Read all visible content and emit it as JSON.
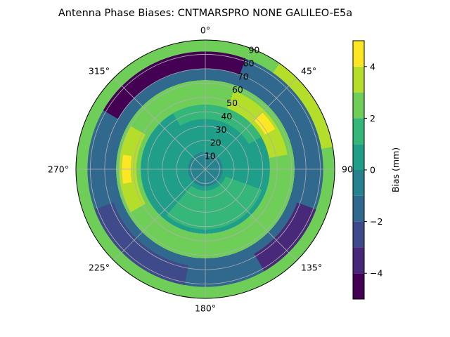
{
  "chart_data": {
    "type": "polar-contour",
    "title": "Antenna Phase Biases: CNTMARSPRO      NONE GALILEO-E5a",
    "theta_zero_location": "N",
    "theta_direction": "clockwise",
    "theta_tick_labels": [
      "0°",
      "45°",
      "90°",
      "135°",
      "180°",
      "225°",
      "270°",
      "315°"
    ],
    "theta_tick_values": [
      0,
      45,
      90,
      135,
      180,
      225,
      270,
      315
    ],
    "radial_tick_labels": [
      "10",
      "20",
      "30",
      "40",
      "50",
      "60",
      "70",
      "80",
      "90"
    ],
    "radial_tick_values": [
      10,
      20,
      30,
      40,
      50,
      60,
      70,
      80,
      90
    ],
    "rlim": [
      0,
      90
    ],
    "grid": true,
    "colormap": "viridis",
    "colorbar": {
      "label": "Bias (mm)",
      "range": [
        -5,
        5
      ],
      "levels": [
        -5,
        -4,
        -3,
        -2,
        -1,
        0,
        1,
        2,
        3,
        4,
        5
      ],
      "tick_values": [
        -4,
        -2,
        0,
        2,
        4
      ],
      "tick_labels": [
        "−4",
        "−2",
        "0",
        "2",
        "4"
      ],
      "colors": [
        "#440154",
        "#482878",
        "#3e4a89",
        "#31688e",
        "#26828e",
        "#1f9e89",
        "#35b779",
        "#6ece58",
        "#b5de2b",
        "#fde725"
      ]
    },
    "regions": [
      {
        "name": "outer-ring",
        "r_range": [
          80,
          90
        ],
        "theta_range": [
          0,
          360
        ],
        "value": 2.5
      },
      {
        "name": "outer-ring-east-high",
        "r_range": [
          82,
          90
        ],
        "theta_range": [
          35,
          80
        ],
        "value": 3.4
      },
      {
        "name": "negative-band",
        "r_range": [
          62,
          82
        ],
        "theta_range": [
          0,
          360
        ],
        "value": -1.5
      },
      {
        "name": "negative-band-north-low",
        "r_range": [
          70,
          82
        ],
        "theta_range": [
          300,
          20
        ],
        "value": -4.5
      },
      {
        "name": "negative-band-southeast-low",
        "r_range": [
          68,
          82
        ],
        "theta_range": [
          110,
          150
        ],
        "value": -3.5
      },
      {
        "name": "negative-band-southwest-low",
        "r_range": [
          68,
          82
        ],
        "theta_range": [
          190,
          250
        ],
        "value": -2.5
      },
      {
        "name": "positive-band",
        "r_range": [
          45,
          62
        ],
        "theta_range": [
          0,
          360
        ],
        "value": 2.5
      },
      {
        "name": "positive-band-northeast-high",
        "r_range": [
          45,
          58
        ],
        "theta_range": [
          20,
          80
        ],
        "value": 3.5
      },
      {
        "name": "positive-band-northeast-peak",
        "r_range": [
          48,
          56
        ],
        "theta_range": [
          45,
          60
        ],
        "value": 4.5
      },
      {
        "name": "positive-band-west-high",
        "r_range": [
          48,
          60
        ],
        "theta_range": [
          240,
          300
        ],
        "value": 3.5
      },
      {
        "name": "positive-band-west-peak",
        "r_range": [
          52,
          58
        ],
        "theta_range": [
          260,
          280
        ],
        "value": 4.5
      },
      {
        "name": "inner-zone",
        "r_range": [
          0,
          45
        ],
        "theta_range": [
          0,
          360
        ],
        "value": 0.5
      },
      {
        "name": "inner-zone-south-high",
        "r_range": [
          15,
          42
        ],
        "theta_range": [
          110,
          220
        ],
        "value": 1.5
      },
      {
        "name": "inner-zone-north-high",
        "r_range": [
          35,
          45
        ],
        "theta_range": [
          330,
          60
        ],
        "value": 1.5
      },
      {
        "name": "center",
        "r_range": [
          0,
          12
        ],
        "theta_range": [
          0,
          360
        ],
        "value": -0.5
      }
    ]
  }
}
